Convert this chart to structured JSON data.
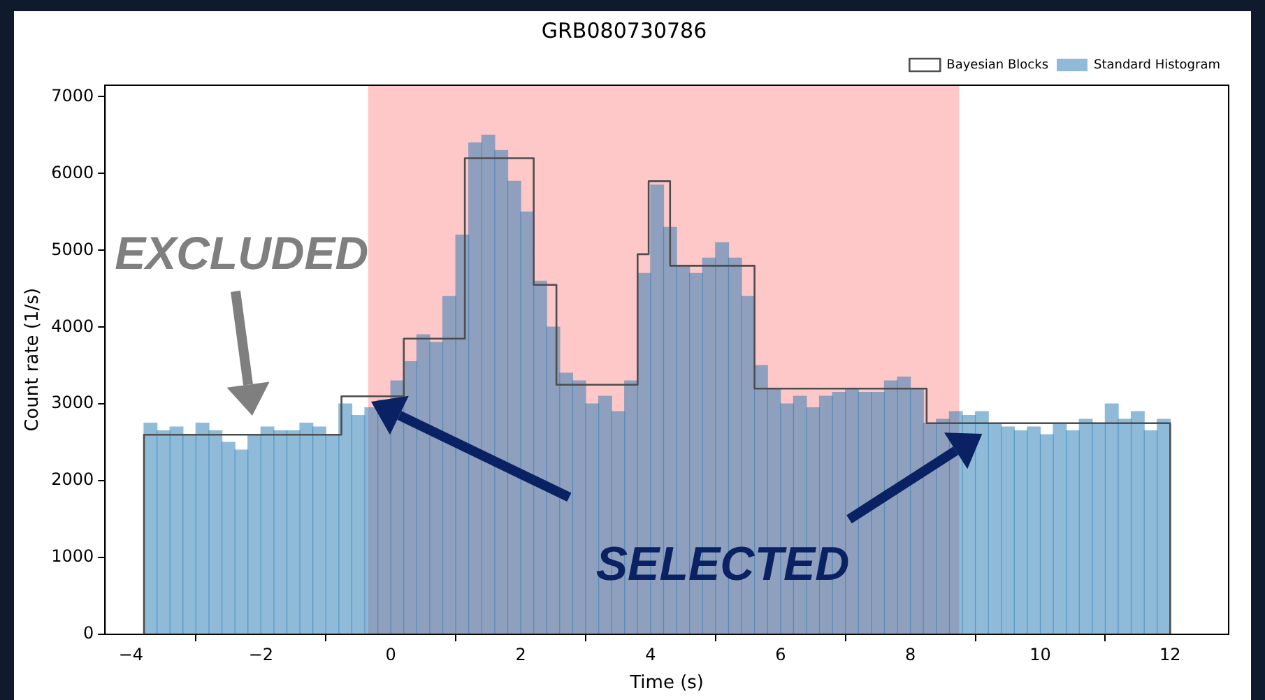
{
  "chart_data": {
    "type": "histogram",
    "title": "GRB080730786",
    "xlabel": "Time (s)",
    "ylabel": "Count rate (1/s)",
    "xlim": [
      -4.4,
      12.9
    ],
    "xticks": [
      {
        "value": -4,
        "label": "−4"
      },
      {
        "value": -2,
        "label": "−2"
      },
      0,
      2,
      4,
      6,
      8,
      10,
      12
    ],
    "ylim": [
      0,
      7150
    ],
    "yticks": [
      0,
      1000,
      2000,
      3000,
      4000,
      5000,
      6000,
      7000
    ],
    "legend": "top right",
    "series": [
      {
        "name": "Bayesian Blocks",
        "type": "step",
        "color": "#4d4d4d",
        "x": [
          -3.8,
          -3.8,
          -0.76,
          0.2,
          1.14,
          2.2,
          2.55,
          3.8,
          3.97,
          4.3,
          5.6,
          8.25,
          12,
          12
        ],
        "values": [
          0,
          2600,
          3100,
          3850,
          6200,
          4550,
          3250,
          4950,
          5900,
          4800,
          3200,
          2750,
          2750,
          0
        ]
      },
      {
        "name": "Standard Histogram",
        "color": "#1f77b4",
        "bins": [
          -3.8,
          -3.6,
          -3.4,
          -3.2,
          -3.0,
          -2.8,
          -2.6,
          -2.4,
          -2.2,
          -2.0,
          -1.8,
          -1.6,
          -1.4,
          -1.2,
          -1.0,
          -0.8,
          -0.6,
          -0.4,
          -0.2,
          0,
          0.2,
          0.4,
          0.6,
          0.8,
          1.0,
          1.2,
          1.4,
          1.6,
          1.8,
          2.0,
          2.2,
          2.4,
          2.6,
          2.8,
          3.0,
          3.2,
          3.4,
          3.6,
          3.8,
          4.0,
          4.2,
          4.4,
          4.6,
          4.8,
          5.0,
          5.2,
          5.4,
          5.6,
          5.8,
          6.0,
          6.2,
          6.4,
          6.6,
          6.8,
          7.0,
          7.2,
          7.4,
          7.6,
          7.8,
          8.0,
          8.2,
          8.4,
          8.6,
          8.8,
          9.0,
          9.2,
          9.4,
          9.6,
          9.8,
          10.0,
          10.2,
          10.4,
          10.6,
          10.8,
          11.0,
          11.2,
          11.4,
          11.6,
          11.8,
          12.0
        ],
        "values": [
          2750,
          2650,
          2700,
          2600,
          2750,
          2650,
          2500,
          2400,
          2600,
          2700,
          2650,
          2650,
          2750,
          2700,
          2600,
          3000,
          2850,
          2950,
          3050,
          3300,
          3550,
          3900,
          3800,
          4400,
          5200,
          6400,
          6500,
          6300,
          5900,
          5500,
          4600,
          4000,
          3400,
          3300,
          3000,
          3100,
          2900,
          3300,
          4700,
          5850,
          5300,
          4800,
          4700,
          4900,
          5100,
          4900,
          4400,
          3500,
          3200,
          3000,
          3100,
          2950,
          3100,
          3150,
          3200,
          3150,
          3150,
          3300,
          3350,
          3200,
          2750,
          2800,
          2900,
          2850,
          2900,
          2750,
          2700,
          2650,
          2700,
          2600,
          2750,
          2650,
          2800,
          2750,
          3000,
          2800,
          2900,
          2650,
          2800
        ]
      }
    ],
    "bands": [
      {
        "axis": "x",
        "from": -0.35,
        "to": 8.75,
        "label": "SELECTED",
        "color": "#ffc8c8"
      }
    ],
    "annotations": [
      "EXCLUDED"
    ]
  }
}
